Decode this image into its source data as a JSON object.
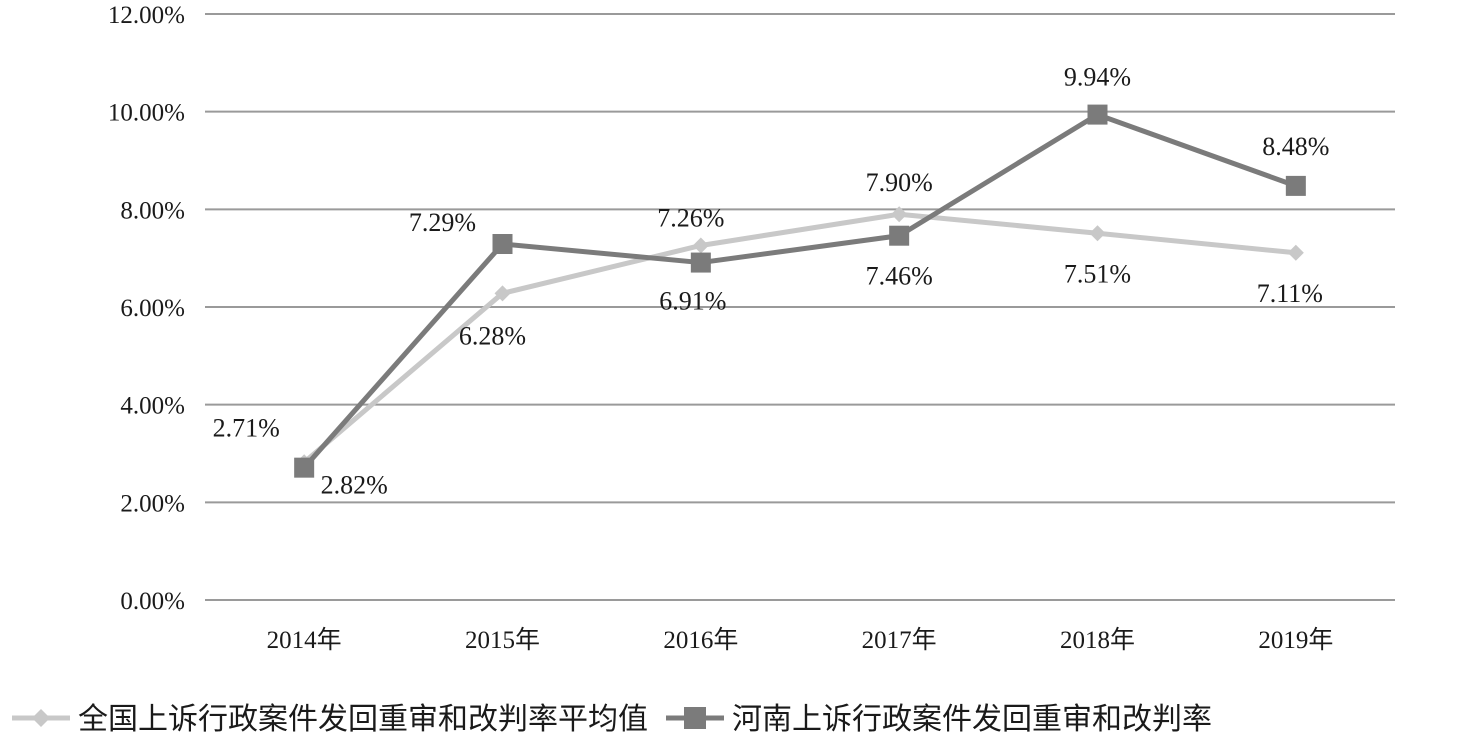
{
  "chart_data": {
    "type": "line",
    "categories": [
      "2014年",
      "2015年",
      "2016年",
      "2017年",
      "2018年",
      "2019年"
    ],
    "y_ticks": [
      "0.00%",
      "2.00%",
      "4.00%",
      "6.00%",
      "8.00%",
      "10.00%",
      "12.00%"
    ],
    "ylim": [
      0,
      12
    ],
    "grid": true,
    "legend_position": "bottom",
    "series": [
      {
        "name": "全国上诉行政案件发回重审和改判率平均值",
        "values": [
          2.82,
          6.28,
          7.26,
          7.9,
          7.51,
          7.11
        ],
        "labels": [
          "2.82%",
          "6.28%",
          "7.26%",
          "7.90%",
          "7.51%",
          "7.11%"
        ],
        "color": "#c8c8c8",
        "marker": "diamond"
      },
      {
        "name": "河南上诉行政案件发回重审和改判率",
        "values": [
          2.71,
          7.29,
          6.91,
          7.46,
          9.94,
          8.48
        ],
        "labels": [
          "2.71%",
          "7.29%",
          "6.91%",
          "7.46%",
          "9.94%",
          "8.48%"
        ],
        "color": "#7b7b7b",
        "marker": "square"
      }
    ]
  }
}
